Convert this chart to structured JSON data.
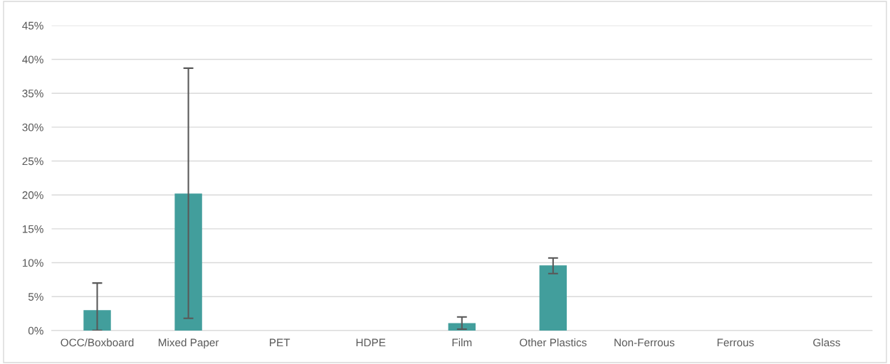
{
  "chart_data": {
    "type": "bar",
    "categories": [
      "OCC/Boxboard",
      "Mixed Paper",
      "PET",
      "HDPE",
      "Film",
      "Other Plastics",
      "Non-Ferrous",
      "Ferrous",
      "Glass"
    ],
    "values": [
      3.0,
      20.2,
      0,
      0,
      1.1,
      9.6,
      0,
      0,
      0
    ],
    "errors": [
      [
        0,
        7.0
      ],
      [
        1.8,
        38.7
      ],
      null,
      null,
      [
        0.2,
        2.0
      ],
      [
        8.4,
        10.7
      ],
      null,
      null,
      null
    ],
    "color": "#429e9c",
    "ylim": [
      0,
      45
    ],
    "yticks": [
      {
        "value": 0,
        "label": "0%"
      },
      {
        "value": 5,
        "label": "5%"
      },
      {
        "value": 10,
        "label": "10%"
      },
      {
        "value": 15,
        "label": "15%"
      },
      {
        "value": 20,
        "label": "20%"
      },
      {
        "value": 25,
        "label": "25%"
      },
      {
        "value": 30,
        "label": "30%"
      },
      {
        "value": 35,
        "label": "35%"
      },
      {
        "value": 40,
        "label": "40%"
      },
      {
        "value": 45,
        "label": "45%"
      }
    ],
    "grid": "y"
  }
}
